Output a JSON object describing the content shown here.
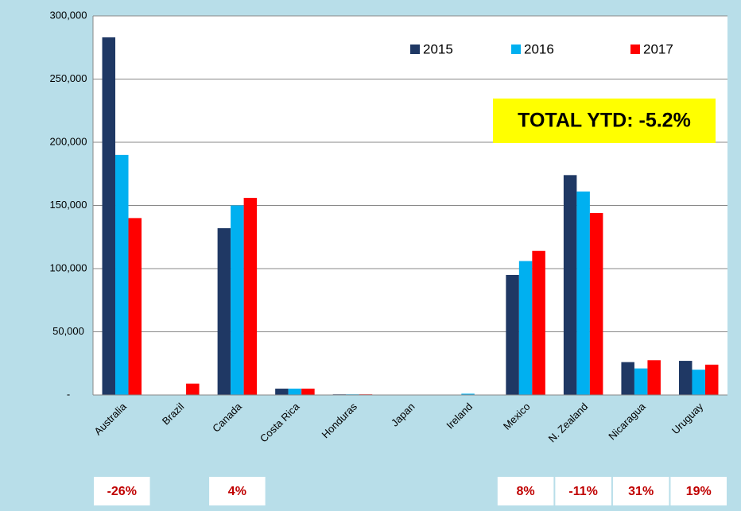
{
  "chart_data": {
    "type": "bar",
    "annotation": "TOTAL YTD: -5.2%",
    "categories": [
      "Australia",
      "Brazil",
      "Canada",
      "Costa Rica",
      "Honduras",
      "Japan",
      "Ireland",
      "Mexico",
      "N. Zealand",
      "Nicaragua",
      "Uruguay"
    ],
    "series": [
      {
        "name": "2015",
        "color": "#1f3864",
        "values": [
          283000,
          0,
          132000,
          5000,
          500,
          0,
          0,
          95000,
          174000,
          26000,
          27000
        ]
      },
      {
        "name": "2016",
        "color": "#00b0f0",
        "values": [
          190000,
          0,
          150000,
          5000,
          500,
          0,
          1000,
          106000,
          161000,
          21000,
          20000
        ]
      },
      {
        "name": "2017",
        "color": "#ff0000",
        "values": [
          140000,
          9000,
          156000,
          5000,
          500,
          0,
          0,
          114000,
          144000,
          27500,
          24000
        ]
      }
    ],
    "change_labels": [
      "-26%",
      null,
      "4%",
      null,
      null,
      null,
      null,
      "8%",
      "-11%",
      "31%",
      "19%"
    ],
    "ylim": [
      0,
      300000
    ],
    "yticks": [
      {
        "value": 0,
        "label": "-"
      },
      {
        "value": 50000,
        "label": "50,000"
      },
      {
        "value": 100000,
        "label": "100,000"
      },
      {
        "value": 150000,
        "label": "150,000"
      },
      {
        "value": 200000,
        "label": "200,000"
      },
      {
        "value": 250000,
        "label": "250,000"
      },
      {
        "value": 300000,
        "label": "300,000"
      }
    ],
    "grid": true,
    "legend": "top"
  }
}
